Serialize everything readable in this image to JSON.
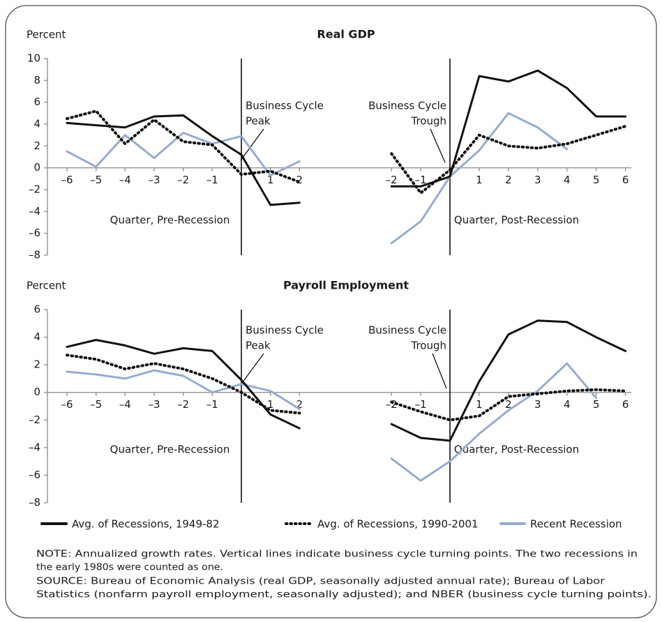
{
  "chart_data": [
    {
      "type": "line",
      "title": "Real GDP",
      "y_label": "Percent",
      "ylim": [
        -8,
        10
      ],
      "yticks": [
        {
          "value": -8,
          "label": "–8"
        },
        {
          "value": -6,
          "label": "–6"
        },
        {
          "value": -4,
          "label": "–4"
        },
        {
          "value": -2,
          "label": "–2"
        },
        0,
        2,
        4,
        6,
        8,
        10
      ],
      "panels": [
        {
          "x_label": "Quarter, Pre-Recession",
          "annotation": [
            "Business Cycle",
            "Peak"
          ],
          "x": [
            -6,
            -5,
            -4,
            -3,
            -2,
            -1,
            0,
            1,
            2
          ],
          "xlim": [
            -6.6,
            2.4
          ],
          "xticks": [
            {
              "value": -6,
              "label": "–6"
            },
            {
              "value": -5,
              "label": "–5"
            },
            {
              "value": -4,
              "label": "–4"
            },
            {
              "value": -3,
              "label": "–3"
            },
            {
              "value": -2,
              "label": "–2"
            },
            {
              "value": -1,
              "label": "–1"
            },
            1,
            2
          ],
          "series": [
            {
              "values": [
                4.1,
                3.9,
                3.7,
                4.7,
                4.8,
                2.9,
                1.2,
                -3.4,
                -3.2
              ]
            },
            {
              "values": [
                4.5,
                5.2,
                2.2,
                4.4,
                2.4,
                2.1,
                -0.6,
                -0.3,
                -1.3
              ]
            },
            {
              "values": [
                1.5,
                0.1,
                3.0,
                0.9,
                3.2,
                2.2,
                2.9,
                -0.7,
                0.6
              ]
            }
          ]
        },
        {
          "x_label": "Quarter, Post-Recession",
          "annotation": [
            "Business Cycle",
            "Trough"
          ],
          "x": [
            -2,
            -1,
            0,
            1,
            2,
            3,
            4,
            5,
            6
          ],
          "xlim": [
            -2.6,
            6.2
          ],
          "xticks": [
            {
              "value": -2,
              "label": "–2"
            },
            {
              "value": -1,
              "label": "–1"
            },
            1,
            2,
            3,
            4,
            5,
            6
          ],
          "series": [
            {
              "values": [
                -1.7,
                -1.7,
                -0.8,
                8.4,
                7.9,
                8.9,
                7.3,
                4.7,
                4.7
              ]
            },
            {
              "values": [
                1.3,
                -2.3,
                -0.2,
                3.0,
                2.0,
                1.8,
                2.2,
                3.0,
                3.8
              ]
            },
            {
              "values": [
                -6.9,
                -4.9,
                -0.8,
                1.6,
                5.0,
                3.7,
                1.7,
                null,
                null
              ]
            }
          ]
        }
      ]
    },
    {
      "type": "line",
      "title": "Payroll Employment",
      "y_label": "Percent",
      "ylim": [
        -8,
        6
      ],
      "yticks": [
        {
          "value": -8,
          "label": "–8"
        },
        {
          "value": -6,
          "label": "–6"
        },
        {
          "value": -4,
          "label": "–4"
        },
        {
          "value": -2,
          "label": "–2"
        },
        0,
        2,
        4,
        6
      ],
      "panels": [
        {
          "x_label": "Quarter, Pre-Recession",
          "annotation": [
            "Business Cycle",
            "Peak"
          ],
          "x": [
            -6,
            -5,
            -4,
            -3,
            -2,
            -1,
            0,
            1,
            2
          ],
          "xlim": [
            -6.6,
            2.4
          ],
          "xticks": [
            {
              "value": -6,
              "label": "–6"
            },
            {
              "value": -5,
              "label": "–5"
            },
            {
              "value": -4,
              "label": "–4"
            },
            {
              "value": -3,
              "label": "–3"
            },
            {
              "value": -2,
              "label": "–2"
            },
            {
              "value": -1,
              "label": "–1"
            },
            1,
            2
          ],
          "series": [
            {
              "values": [
                3.3,
                3.8,
                3.4,
                2.8,
                3.2,
                3.0,
                0.9,
                -1.6,
                -2.6
              ]
            },
            {
              "values": [
                2.7,
                2.4,
                1.7,
                2.1,
                1.7,
                1.0,
                0.0,
                -1.3,
                -1.5
              ]
            },
            {
              "values": [
                1.5,
                1.3,
                1.0,
                1.6,
                1.2,
                0.0,
                0.6,
                0.1,
                -1.2
              ]
            }
          ]
        },
        {
          "x_label": "Quarter, Post-Recession",
          "annotation": [
            "Business Cycle",
            "Trough"
          ],
          "x": [
            -2,
            -1,
            0,
            1,
            2,
            3,
            4,
            5,
            6
          ],
          "xlim": [
            -2.6,
            6.2
          ],
          "xticks": [
            {
              "value": -2,
              "label": "–2"
            },
            {
              "value": -1,
              "label": "–1"
            },
            1,
            2,
            3,
            4,
            5,
            6
          ],
          "series": [
            {
              "values": [
                -2.3,
                -3.3,
                -3.5,
                0.8,
                4.2,
                5.2,
                5.1,
                4.0,
                3.0
              ]
            },
            {
              "values": [
                -0.7,
                -1.4,
                -2.0,
                -1.7,
                -0.3,
                -0.1,
                0.1,
                0.2,
                0.1
              ]
            },
            {
              "values": [
                -4.8,
                -6.4,
                -5.0,
                -3.0,
                -1.3,
                0.1,
                2.1,
                -0.4,
                null
              ]
            }
          ]
        }
      ]
    }
  ],
  "legend": [
    {
      "name": "Avg. of Recessions, 1949-82",
      "color": "#111111",
      "dash": "solid"
    },
    {
      "name": "Avg. of Recessions, 1990-2001",
      "color": "#111111",
      "dash": "dotted"
    },
    {
      "name": "Recent Recession",
      "color": "#95acd0",
      "dash": "solid"
    }
  ],
  "footnote_lines": [
    "NOTE: Annualized growth rates. Vertical lines indicate business cycle turning points. The two recessions in",
    "the early 1980s were counted as one.",
    "SOURCE: Bureau of Economic Analysis (real GDP, seasonally adjusted annual rate); Bureau of Labor",
    "Statistics (nonfarm payroll employment, seasonally adjusted); and NBER (business cycle turning points)."
  ]
}
